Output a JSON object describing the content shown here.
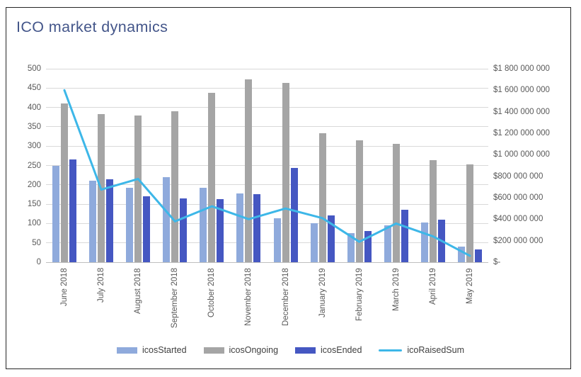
{
  "header": {
    "title": "ICO market dynamics"
  },
  "colors": {
    "title": "#44568a",
    "gridline": "#d9d9d9",
    "axis_text": "#595959",
    "started_bar": "#8faadc",
    "ongoing_bar": "#a5a5a5",
    "ended_bar": "#4557c2",
    "raised_line": "#3db7e8",
    "frame_border": "#262626"
  },
  "chart_data": {
    "type": "bar+line combo",
    "title": "ICO market dynamics",
    "grid": true,
    "legend_position": "bottom",
    "categories": [
      "June 2018",
      "July 2018",
      "August 2018",
      "September 2018",
      "October 2018",
      "November 2018",
      "December 2018",
      "January 2019",
      "February 2019",
      "March 2019",
      "April 2019",
      "May 2019"
    ],
    "series": [
      {
        "name": "icosStarted",
        "type": "bar",
        "axis": "left",
        "color": "#8faadc",
        "values": [
          250,
          210,
          192,
          220,
          192,
          177,
          114,
          100,
          76,
          95,
          102,
          40
        ]
      },
      {
        "name": "icosOngoing",
        "type": "bar",
        "axis": "left",
        "color": "#a5a5a5",
        "values": [
          410,
          382,
          380,
          390,
          438,
          472,
          463,
          334,
          315,
          305,
          263,
          252
        ]
      },
      {
        "name": "icosEnded",
        "type": "bar",
        "axis": "left",
        "color": "#4557c2",
        "values": [
          265,
          215,
          170,
          165,
          163,
          176,
          243,
          120,
          81,
          135,
          110,
          33
        ]
      },
      {
        "name": "icoRaisedSum",
        "type": "line",
        "axis": "right",
        "color": "#3db7e8",
        "values": [
          1600000000,
          675000000,
          775000000,
          380000000,
          520000000,
          400000000,
          500000000,
          410000000,
          190000000,
          360000000,
          240000000,
          60000000
        ]
      }
    ],
    "left_axis": {
      "min": 0,
      "max": 500,
      "step": 50,
      "ticks": [
        "0",
        "50",
        "100",
        "150",
        "200",
        "250",
        "300",
        "350",
        "400",
        "450",
        "500"
      ]
    },
    "right_axis": {
      "min": 0,
      "max": 1800000000,
      "step": 200000000,
      "ticks": [
        "$-",
        "$200 000 000",
        "$400 000 000",
        "$600 000 000",
        "$800 000 000",
        "$1 000 000 000",
        "$1 200 000 000",
        "$1 400 000 000",
        "$1 600 000 000",
        "$1 800 000 000"
      ]
    }
  }
}
